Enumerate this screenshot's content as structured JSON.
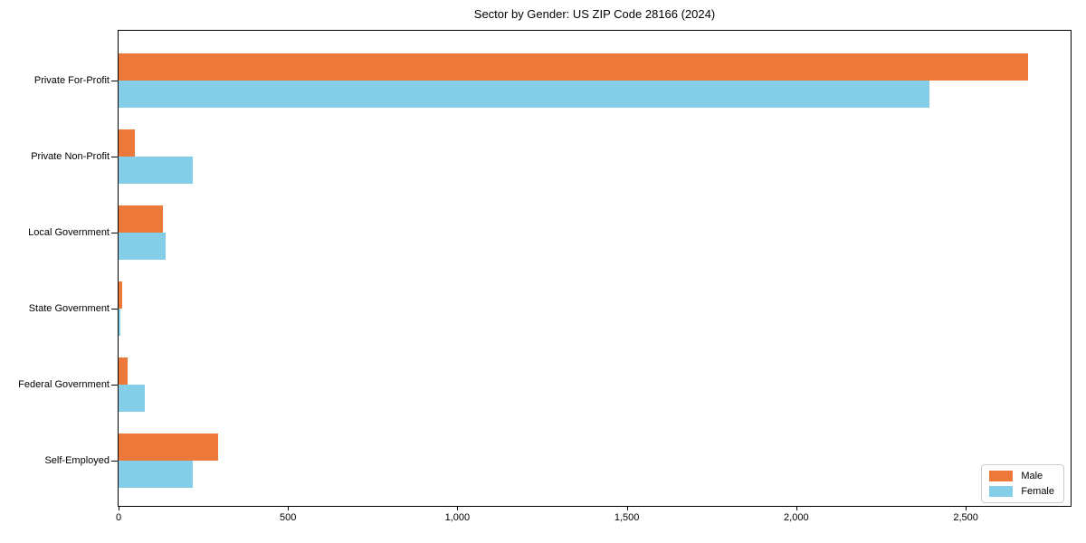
{
  "title": "Sector by Gender: US ZIP Code 28166 (2024)",
  "chart_data": {
    "type": "bar",
    "orientation": "horizontal",
    "title": "Sector by Gender: US ZIP Code 28166 (2024)",
    "categories": [
      "Private For-Profit",
      "Private Non-Profit",
      "Local Government",
      "State Government",
      "Federal Government",
      "Self-Employed"
    ],
    "series": [
      {
        "name": "Male",
        "color": "#EC7839",
        "values": [
          2684,
          49,
          131,
          10,
          26,
          294
        ]
      },
      {
        "name": "Female",
        "color": "#85CEEA",
        "values": [
          2393,
          218,
          140,
          4,
          76,
          218
        ]
      }
    ],
    "xlabel": "",
    "ylabel": "",
    "xlim": [
      0,
      2815
    ],
    "xticks": [
      0,
      500,
      1000,
      1500,
      2000,
      2500
    ],
    "xtick_labels": [
      "0",
      "500",
      "1,000",
      "1,500",
      "2,000",
      "2,500"
    ],
    "grid": false,
    "legend": {
      "position": "lower right"
    },
    "colors": {
      "spine": "#000000",
      "background": "#ffffff"
    }
  }
}
